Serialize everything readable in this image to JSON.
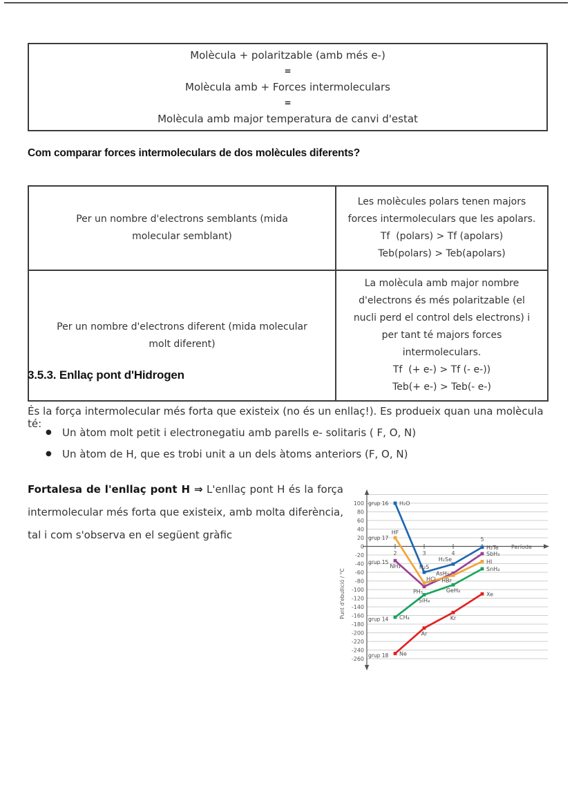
{
  "page": {
    "equation_box": {
      "line1": "Molècula + polaritzable (amb més e-)",
      "eq1": "=",
      "line2": "Molècula amb + Forces intermoleculars",
      "eq2": "=",
      "line3": "Molècula amb major temperatura de canvi d'estat"
    },
    "question_heading": "Com comparar forces intermoleculars de dos molècules diferents?",
    "comparison_table": {
      "rows": [
        {
          "left": "Per un nombre d'electrons semblants (mida molecular semblant)",
          "right_text": "Les molècules polars tenen majors forces intermoleculars que les apolars.",
          "right_formulas": [
            "Tf  (polars) > Tf (apolars)",
            "Teb(polars) > Teb(apolars)"
          ]
        },
        {
          "left": "Per un nombre d'electrons diferent (mida molecular molt diferent)",
          "right_text": "La molècula amb major nombre d'electrons és més polaritzable (el nucli perd el control dels electrons) i per tant té majors forces intermoleculars.",
          "right_formulas": [
            "Tf  (+ e-) > Tf (- e-))",
            "Teb(+ e-) > Teb(- e-)"
          ]
        }
      ]
    },
    "section_heading": "3.5.3. Enllaç pont d'Hidrogen",
    "intro": "És la força intermolecular més forta que existeix (no és un enllaç!). Es produeix quan una molècula té:",
    "bullets": [
      "Un àtom molt petit i electronegatiu amb parells e- solitaris ( F, O, N)",
      "Un àtom de H, que es trobi unit a un dels àtoms anteriors (F, O, N)"
    ],
    "fortalesa": {
      "lead": "Fortalesa de l'enllaç pont H ⇒",
      "text": " L'enllaç pont H és la força intermolecular més forta que existeix, amb molta diferència, tal i com s'observa en el següent gràfic"
    }
  },
  "chart_data": {
    "type": "line",
    "ylabel": "Punt d'ebullició / °C",
    "xlabel": "Període",
    "x_values": [
      2,
      3,
      4,
      5
    ],
    "ylim": [
      -260,
      100
    ],
    "ytick_step": 20,
    "grid": true,
    "grid_extra_values": [
      120
    ],
    "legend_position": "left-inline",
    "xticks": [
      {
        "value": 2,
        "side": "below"
      },
      {
        "value": 3,
        "side": "below"
      },
      {
        "value": 4,
        "side": "below"
      },
      {
        "value": 5,
        "side": "above"
      }
    ],
    "series": [
      {
        "name": "grup 16",
        "color": "#2066b0",
        "points": [
          {
            "formula": "H₂O",
            "period": 2,
            "bp": 100,
            "label_pos": "right"
          },
          {
            "formula": "H₂S",
            "period": 3,
            "bp": -60,
            "label_pos": "above"
          },
          {
            "formula": "H₂Se",
            "period": 4,
            "bp": -41,
            "label_pos": "above-left"
          },
          {
            "formula": "H₂Te",
            "period": 5,
            "bp": -2,
            "label_pos": "right"
          }
        ]
      },
      {
        "name": "grup 17",
        "color": "#f0a63c",
        "points": [
          {
            "formula": "HF",
            "period": 2,
            "bp": 20,
            "label_pos": "above"
          },
          {
            "formula": "HCl",
            "period": 3,
            "bp": -85,
            "label_pos": "above-right"
          },
          {
            "formula": "HBr",
            "period": 4,
            "bp": -67,
            "label_pos": "below-left"
          },
          {
            "formula": "HI",
            "period": 5,
            "bp": -35,
            "label_pos": "right"
          }
        ]
      },
      {
        "name": "grup 15",
        "color": "#9c3f97",
        "points": [
          {
            "formula": "NH₃",
            "period": 2,
            "bp": -33,
            "label_pos": "below"
          },
          {
            "formula": "PH₃",
            "period": 3,
            "bp": -93,
            "label_pos": "below-left"
          },
          {
            "formula": "AsH₃",
            "period": 4,
            "bp": -62,
            "label_pos": "left"
          },
          {
            "formula": "SbH₃",
            "period": 5,
            "bp": -17,
            "label_pos": "right"
          }
        ]
      },
      {
        "name": "grup 14",
        "color": "#1aa35c",
        "points": [
          {
            "formula": "CH₄",
            "period": 2,
            "bp": -164,
            "label_pos": "right"
          },
          {
            "formula": "SiH₄",
            "period": 3,
            "bp": -112,
            "label_pos": "below"
          },
          {
            "formula": "GeH₄",
            "period": 4,
            "bp": -89,
            "label_pos": "below"
          },
          {
            "formula": "SnH₄",
            "period": 5,
            "bp": -52,
            "label_pos": "right"
          }
        ]
      },
      {
        "name": "grup 18",
        "color": "#e02322",
        "points": [
          {
            "formula": "Ne",
            "period": 2,
            "bp": -248,
            "label_pos": "right"
          },
          {
            "formula": "Ar",
            "period": 3,
            "bp": -189,
            "label_pos": "below"
          },
          {
            "formula": "Kr",
            "period": 4,
            "bp": -153,
            "label_pos": "below"
          },
          {
            "formula": "Xe",
            "period": 5,
            "bp": -110,
            "label_pos": "right"
          }
        ]
      }
    ],
    "group_labels": [
      {
        "text": "grup 16",
        "value": 100
      },
      {
        "text": "grup 17",
        "value": 20
      },
      {
        "text": "grup 15",
        "value": -36
      },
      {
        "text": "grup 14",
        "value": -168
      },
      {
        "text": "grup 18",
        "value": -252
      }
    ]
  }
}
